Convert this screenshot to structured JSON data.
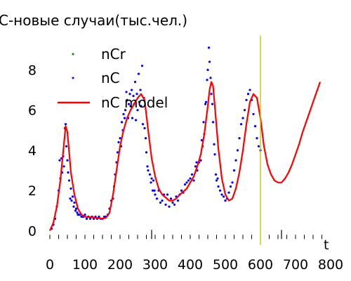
{
  "chart_data": {
    "type": "line",
    "title": "С-новые случаи(тыс.чел.)",
    "xlabel": "t",
    "ylabel": "",
    "xlim": [
      -18,
      818
    ],
    "ylim": [
      -0.75,
      9.9
    ],
    "x_ticks": [
      0,
      100,
      200,
      300,
      400,
      500,
      600,
      700,
      800
    ],
    "y_ticks": [
      0,
      2,
      4,
      6,
      8
    ],
    "grid": false,
    "legend_position": "top-left",
    "colors": {
      "nCr": "#008000",
      "nC": "#0000ff",
      "model": "#ff0000",
      "marker_line": "#bfbf00",
      "axis": "#000000"
    },
    "series": [
      {
        "name": "nCr",
        "type": "scatter",
        "x": [],
        "y": []
      },
      {
        "name": "nC",
        "type": "scatter",
        "points": [
          [
            5,
            0.1
          ],
          [
            10,
            0.3
          ],
          [
            15,
            0.6
          ],
          [
            20,
            1.2
          ],
          [
            25,
            2.0
          ],
          [
            28,
            3.5
          ],
          [
            30,
            2.6
          ],
          [
            33,
            3.6
          ],
          [
            35,
            2.9
          ],
          [
            38,
            3.7
          ],
          [
            40,
            3.2
          ],
          [
            43,
            5.1
          ],
          [
            45,
            5.3
          ],
          [
            47,
            4.2
          ],
          [
            50,
            3.5
          ],
          [
            52,
            2.9
          ],
          [
            55,
            2.5
          ],
          [
            58,
            1.6
          ],
          [
            60,
            2.1
          ],
          [
            62,
            1.5
          ],
          [
            65,
            1.7
          ],
          [
            68,
            1.2
          ],
          [
            70,
            1.4
          ],
          [
            73,
            1.0
          ],
          [
            75,
            1.1
          ],
          [
            78,
            0.9
          ],
          [
            80,
            0.8
          ],
          [
            85,
            0.8
          ],
          [
            90,
            0.7
          ],
          [
            95,
            0.7
          ],
          [
            100,
            0.8
          ],
          [
            105,
            0.6
          ],
          [
            110,
            0.7
          ],
          [
            115,
            0.6
          ],
          [
            120,
            0.7
          ],
          [
            125,
            0.6
          ],
          [
            130,
            0.7
          ],
          [
            135,
            0.6
          ],
          [
            140,
            0.7
          ],
          [
            145,
            0.6
          ],
          [
            150,
            0.6
          ],
          [
            155,
            0.7
          ],
          [
            160,
            0.7
          ],
          [
            165,
            0.8
          ],
          [
            170,
            1.1
          ],
          [
            175,
            1.5
          ],
          [
            180,
            1.6
          ],
          [
            183,
            2.2
          ],
          [
            186,
            2.8
          ],
          [
            190,
            3.4
          ],
          [
            193,
            3.9
          ],
          [
            196,
            4.4
          ],
          [
            200,
            4.6
          ],
          [
            203,
            4.2
          ],
          [
            205,
            5.4
          ],
          [
            208,
            5.0
          ],
          [
            210,
            5.8
          ],
          [
            213,
            5.6
          ],
          [
            215,
            6.0
          ],
          [
            218,
            6.9
          ],
          [
            220,
            6.5
          ],
          [
            223,
            5.6
          ],
          [
            225,
            6.3
          ],
          [
            228,
            6.8
          ],
          [
            230,
            6.2
          ],
          [
            233,
            7.0
          ],
          [
            235,
            5.6
          ],
          [
            238,
            6.7
          ],
          [
            240,
            6.3
          ],
          [
            243,
            7.4
          ],
          [
            245,
            5.5
          ],
          [
            248,
            6.8
          ],
          [
            250,
            6.0
          ],
          [
            253,
            7.8
          ],
          [
            255,
            6.4
          ],
          [
            258,
            7.0
          ],
          [
            260,
            6.2
          ],
          [
            263,
            8.2
          ],
          [
            265,
            5.3
          ],
          [
            268,
            6.6
          ],
          [
            270,
            5.1
          ],
          [
            273,
            4.6
          ],
          [
            275,
            3.9
          ],
          [
            278,
            3.2
          ],
          [
            280,
            3.0
          ],
          [
            285,
            2.8
          ],
          [
            288,
            2.4
          ],
          [
            290,
            2.6
          ],
          [
            293,
            2.0
          ],
          [
            295,
            2.5
          ],
          [
            298,
            2.0
          ],
          [
            300,
            1.8
          ],
          [
            305,
            1.6
          ],
          [
            310,
            2.0
          ],
          [
            315,
            1.4
          ],
          [
            320,
            1.5
          ],
          [
            325,
            1.8
          ],
          [
            330,
            1.3
          ],
          [
            335,
            1.8
          ],
          [
            340,
            1.2
          ],
          [
            345,
            1.6
          ],
          [
            350,
            1.4
          ],
          [
            355,
            1.3
          ],
          [
            360,
            1.7
          ],
          [
            365,
            1.5
          ],
          [
            370,
            1.8
          ],
          [
            375,
            2.0
          ],
          [
            380,
            1.9
          ],
          [
            385,
            2.3
          ],
          [
            390,
            2.4
          ],
          [
            395,
            2.5
          ],
          [
            400,
            2.6
          ],
          [
            405,
            2.8
          ],
          [
            410,
            2.5
          ],
          [
            415,
            3.2
          ],
          [
            418,
            3.4
          ],
          [
            420,
            3.0
          ],
          [
            425,
            3.4
          ],
          [
            430,
            3.5
          ],
          [
            433,
            4.5
          ],
          [
            435,
            4.2
          ],
          [
            438,
            5.4
          ],
          [
            440,
            4.8
          ],
          [
            443,
            6.3
          ],
          [
            445,
            6.4
          ],
          [
            448,
            7.5
          ],
          [
            450,
            8.0
          ],
          [
            453,
            9.1
          ],
          [
            455,
            8.4
          ],
          [
            458,
            7.6
          ],
          [
            460,
            6.8
          ],
          [
            463,
            6.3
          ],
          [
            465,
            5.4
          ],
          [
            468,
            4.3
          ],
          [
            470,
            3.8
          ],
          [
            473,
            2.8
          ],
          [
            475,
            2.5
          ],
          [
            478,
            2.6
          ],
          [
            480,
            2.2
          ],
          [
            485,
            2.0
          ],
          [
            490,
            1.8
          ],
          [
            495,
            1.7
          ],
          [
            500,
            1.5
          ],
          [
            505,
            1.6
          ],
          [
            510,
            1.9
          ],
          [
            515,
            2.2
          ],
          [
            520,
            2.4
          ],
          [
            525,
            3.0
          ],
          [
            530,
            3.5
          ],
          [
            535,
            4.0
          ],
          [
            540,
            4.6
          ],
          [
            545,
            5.3
          ],
          [
            550,
            5.6
          ],
          [
            555,
            6.0
          ],
          [
            560,
            6.5
          ],
          [
            565,
            6.8
          ],
          [
            570,
            7.0
          ],
          [
            575,
            6.5
          ],
          [
            580,
            5.8
          ],
          [
            585,
            5.2
          ],
          [
            590,
            4.6
          ],
          [
            595,
            4.2
          ],
          [
            600,
            4.0
          ]
        ]
      },
      {
        "name": "nC model",
        "type": "line",
        "points": [
          [
            0,
            0.0
          ],
          [
            10,
            0.4
          ],
          [
            20,
            1.2
          ],
          [
            30,
            2.5
          ],
          [
            40,
            4.3
          ],
          [
            45,
            5.2
          ],
          [
            50,
            4.9
          ],
          [
            55,
            3.9
          ],
          [
            60,
            2.9
          ],
          [
            70,
            1.8
          ],
          [
            80,
            1.1
          ],
          [
            90,
            0.8
          ],
          [
            100,
            0.7
          ],
          [
            130,
            0.65
          ],
          [
            150,
            0.6
          ],
          [
            160,
            0.65
          ],
          [
            170,
            0.9
          ],
          [
            180,
            1.8
          ],
          [
            190,
            3.0
          ],
          [
            200,
            4.2
          ],
          [
            210,
            5.0
          ],
          [
            220,
            5.6
          ],
          [
            230,
            6.0
          ],
          [
            240,
            6.3
          ],
          [
            250,
            6.6
          ],
          [
            260,
            6.8
          ],
          [
            270,
            6.5
          ],
          [
            280,
            5.0
          ],
          [
            290,
            3.6
          ],
          [
            300,
            2.7
          ],
          [
            310,
            2.1
          ],
          [
            320,
            1.8
          ],
          [
            340,
            1.5
          ],
          [
            350,
            1.5
          ],
          [
            360,
            1.6
          ],
          [
            370,
            1.8
          ],
          [
            390,
            2.1
          ],
          [
            400,
            2.4
          ],
          [
            410,
            2.7
          ],
          [
            420,
            3.2
          ],
          [
            430,
            3.8
          ],
          [
            440,
            4.8
          ],
          [
            450,
            6.2
          ],
          [
            455,
            7.0
          ],
          [
            460,
            7.4
          ],
          [
            465,
            7.2
          ],
          [
            470,
            6.2
          ],
          [
            480,
            4.1
          ],
          [
            490,
            2.6
          ],
          [
            500,
            1.8
          ],
          [
            510,
            1.5
          ],
          [
            520,
            1.6
          ],
          [
            530,
            2.1
          ],
          [
            540,
            2.9
          ],
          [
            550,
            4.0
          ],
          [
            560,
            5.3
          ],
          [
            570,
            6.4
          ],
          [
            580,
            6.8
          ],
          [
            590,
            6.6
          ],
          [
            600,
            5.6
          ],
          [
            610,
            4.2
          ],
          [
            620,
            3.3
          ],
          [
            630,
            2.8
          ],
          [
            640,
            2.5
          ],
          [
            650,
            2.4
          ],
          [
            660,
            2.4
          ],
          [
            670,
            2.6
          ],
          [
            680,
            2.9
          ],
          [
            690,
            3.3
          ],
          [
            700,
            3.8
          ],
          [
            710,
            4.3
          ],
          [
            720,
            4.9
          ],
          [
            730,
            5.4
          ],
          [
            740,
            5.9
          ],
          [
            750,
            6.4
          ],
          [
            760,
            6.9
          ],
          [
            770,
            7.4
          ]
        ]
      }
    ],
    "vline": {
      "x": 600,
      "y_from": -0.7,
      "y_to": 9.7
    },
    "baseline_ticks": {
      "y": -0.2,
      "minor_x": [
        0,
        25,
        50,
        75,
        100,
        125,
        150,
        175,
        200,
        225,
        250,
        275,
        300,
        325,
        350,
        375,
        400,
        425,
        450,
        475,
        500,
        525,
        550,
        575,
        600,
        625,
        650,
        675,
        700,
        725,
        750,
        775
      ],
      "major_x": [
        290,
        660
      ]
    }
  }
}
